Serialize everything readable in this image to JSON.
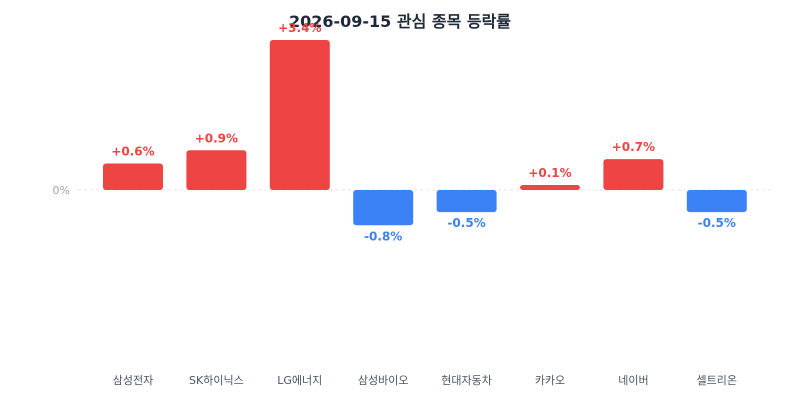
{
  "chart_data": {
    "type": "bar",
    "title": "2026-09-15 관심 종목 등락률",
    "categories": [
      "삼성전자",
      "SK하이닉스",
      "LG에너지",
      "삼성바이오",
      "현대자동차",
      "카카오",
      "네이버",
      "셀트리온"
    ],
    "values": [
      0.6,
      0.9,
      3.4,
      -0.8,
      -0.5,
      0.1,
      0.7,
      -0.5
    ],
    "value_labels": [
      "+0.6%",
      "+0.9%",
      "+3.4%",
      "-0.8%",
      "-0.5%",
      "+0.1%",
      "+0.7%",
      "-0.5%"
    ],
    "zero_label": "0%",
    "ylim": [
      -4,
      3.4
    ],
    "grid": false,
    "colors": {
      "positive": "#ef4444",
      "negative": "#3b82f6",
      "zero_line": "#e5e7eb"
    }
  }
}
